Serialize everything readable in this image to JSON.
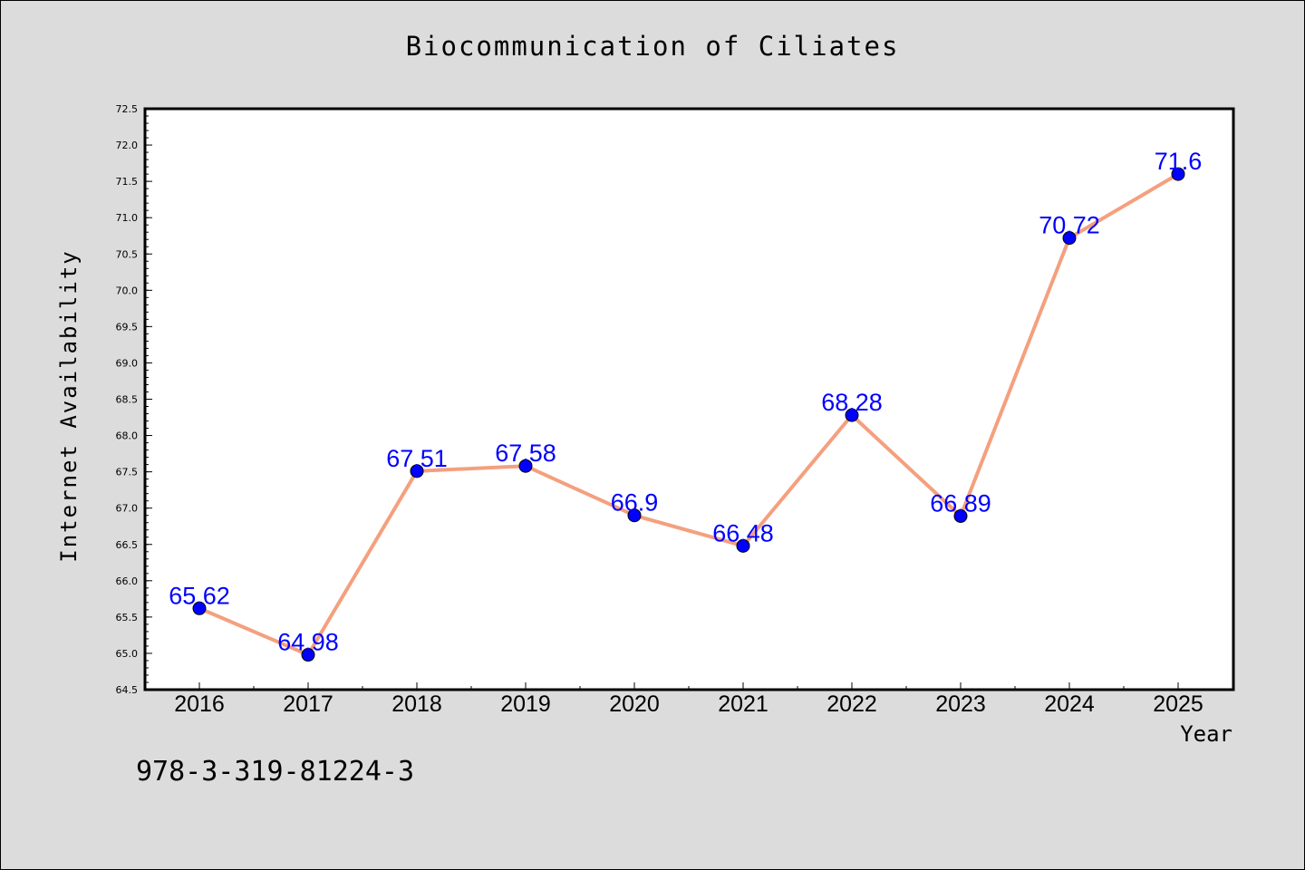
{
  "isbn": "978-3-319-81224-3",
  "colors": {
    "background": "#dcdcdc",
    "plot_background": "#ffffff",
    "line": "#f4a07e",
    "marker": "#0000ff",
    "data_label": "#0000ff"
  },
  "chart_data": {
    "type": "line",
    "title": "Biocommunication of Ciliates",
    "xlabel": "Year",
    "ylabel": "Internet Availability",
    "categories": [
      "2016",
      "2017",
      "2018",
      "2019",
      "2020",
      "2021",
      "2022",
      "2023",
      "2024",
      "2025"
    ],
    "values": [
      65.62,
      64.98,
      67.51,
      67.58,
      66.9,
      66.48,
      68.28,
      66.89,
      70.72,
      71.6
    ],
    "data_labels": [
      "65.62",
      "64.98",
      "67.51",
      "67.58",
      "66.9",
      "66.48",
      "68.28",
      "66.89",
      "70.72",
      "71.6"
    ],
    "ylim": [
      64.5,
      72.5
    ],
    "yticks": [
      "64.5",
      "65.0",
      "65.5",
      "66.0",
      "66.5",
      "67.0",
      "67.5",
      "68.0",
      "68.5",
      "69.0",
      "69.5",
      "70.0",
      "70.5",
      "71.0",
      "71.5",
      "72.0",
      "72.5"
    ],
    "grid": false,
    "legend": "none"
  }
}
